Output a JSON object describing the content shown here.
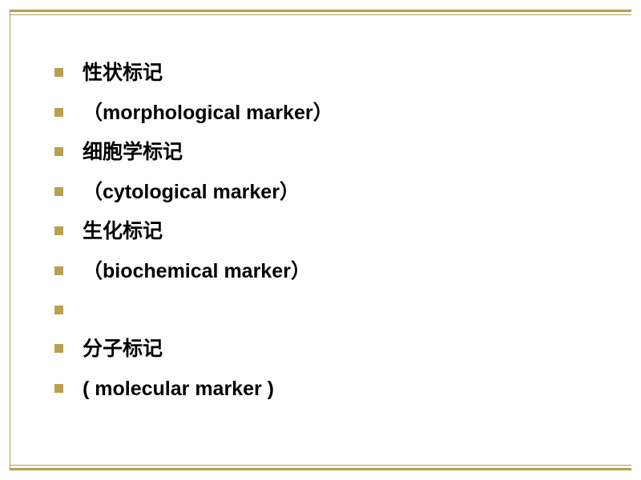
{
  "slide": {
    "items": [
      {
        "text": "性状标记",
        "isEmpty": false,
        "isEnglish": false
      },
      {
        "text": "（morphological marker）",
        "isEmpty": false,
        "isEnglish": true
      },
      {
        "text": "细胞学标记",
        "isEmpty": false,
        "isEnglish": false
      },
      {
        "text": "（cytological marker）",
        "isEmpty": false,
        "isEnglish": true
      },
      {
        "text": "生化标记",
        "isEmpty": false,
        "isEnglish": false
      },
      {
        "text": "（biochemical marker）",
        "isEmpty": false,
        "isEnglish": true
      },
      {
        "text": "",
        "isEmpty": true,
        "isEnglish": false
      },
      {
        "text": "分子标记",
        "isEmpty": false,
        "isEnglish": false
      },
      {
        "text": "( molecular marker )",
        "isEmpty": false,
        "isEnglish": true
      }
    ]
  },
  "styling": {
    "bullet_color": "#b8a050",
    "text_color": "#000000",
    "background_color": "#ffffff",
    "border_color": "#b8a050",
    "font_size": 25,
    "bullet_size": 11
  }
}
